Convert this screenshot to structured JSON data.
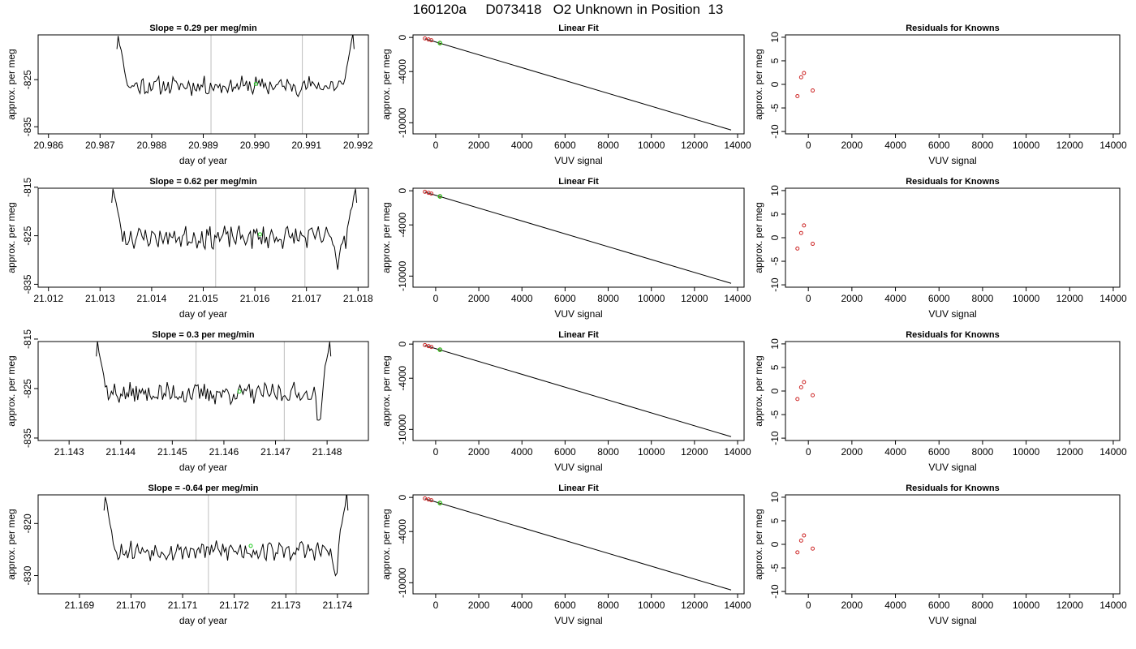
{
  "title": "160120a     D073418   O2 Unknown in Position  13",
  "chart_data": [
    {
      "type": "line",
      "panel": "trace",
      "title": "Slope =  0.29  per meg/min",
      "xlabel": "day of year",
      "ylabel": "approx. per meg",
      "xlim": [
        20.9858,
        20.9922
      ],
      "ylim": [
        -836.5,
        -815.5
      ],
      "xticks": [
        "20.986",
        "20.987",
        "20.988",
        "20.989",
        "20.990",
        "20.991",
        "20.992"
      ],
      "yticks": [
        "-825",
        "-835"
      ],
      "vlines": [
        20.98915,
        20.99092
      ],
      "marker": {
        "x": 20.99002,
        "y": -825.9
      },
      "trace": {
        "start": 20.98735,
        "end": 20.9919,
        "base": -826.3,
        "amp": 1.7,
        "seed": 11,
        "edge_left_y": -815.5,
        "edge_right_y": -815.5
      }
    },
    {
      "type": "scatter",
      "panel": "fit",
      "title": "Linear Fit",
      "xlabel": "VUV signal",
      "ylabel": "approx. per meg",
      "xlim": [
        -1050,
        14300
      ],
      "ylim": [
        -11300,
        300
      ],
      "xticks": [
        "0",
        "2000",
        "4000",
        "6000",
        "8000",
        "10000",
        "12000",
        "14000"
      ],
      "yticks": [
        "0",
        "-4000",
        "-10000"
      ],
      "line": {
        "x": [
          -500,
          13700
        ],
        "y": [
          -150,
          -10850
        ]
      },
      "knowns": {
        "x": [
          -500,
          -330,
          -200,
          200
        ],
        "y": [
          -120,
          -240,
          -330,
          -630
        ]
      },
      "unknown": {
        "x": 200,
        "y": -670
      }
    },
    {
      "type": "scatter",
      "panel": "residuals",
      "title": "Residuals for Knowns",
      "xlabel": "VUV signal",
      "ylabel": "approx. per meg",
      "xlim": [
        -1050,
        14300
      ],
      "ylim": [
        -10.5,
        10.5
      ],
      "xticks": [
        "0",
        "2000",
        "4000",
        "6000",
        "8000",
        "10000",
        "12000",
        "14000"
      ],
      "yticks": [
        "10",
        "5",
        "0",
        "-5",
        "-10"
      ],
      "x": [
        -500,
        -330,
        -200,
        200
      ],
      "y": [
        -2.5,
        1.5,
        2.4,
        -1.3
      ]
    },
    {
      "type": "line",
      "panel": "trace",
      "title": "Slope =  0.62  per meg/min",
      "xlabel": "day of year",
      "ylabel": "approx. per meg",
      "xlim": [
        21.0118,
        21.0182
      ],
      "ylim": [
        -835.6,
        -815.2
      ],
      "xticks": [
        "21.012",
        "21.013",
        "21.014",
        "21.015",
        "21.016",
        "21.017",
        "21.018"
      ],
      "yticks": [
        "-815",
        "-825",
        "-835"
      ],
      "vlines": [
        21.01524,
        21.01697
      ],
      "marker": {
        "x": 21.0161,
        "y": -824.7
      },
      "trace": {
        "start": 21.01325,
        "end": 21.01795,
        "base": -825.3,
        "amp": 1.9,
        "seed": 23,
        "edge_left_y": -815.2,
        "edge_right_y": -815.2,
        "dip": {
          "x": 21.0176,
          "y": -831
        }
      }
    },
    {
      "type": "scatter",
      "panel": "fit",
      "title": "Linear Fit",
      "xlabel": "VUV signal",
      "ylabel": "approx. per meg",
      "xlim": [
        -1050,
        14300
      ],
      "ylim": [
        -11300,
        300
      ],
      "xticks": [
        "0",
        "2000",
        "4000",
        "6000",
        "8000",
        "10000",
        "12000",
        "14000"
      ],
      "yticks": [
        "0",
        "-4000",
        "-10000"
      ],
      "line": {
        "x": [
          -500,
          13700
        ],
        "y": [
          -150,
          -10850
        ]
      },
      "knowns": {
        "x": [
          -500,
          -330,
          -200,
          200
        ],
        "y": [
          -120,
          -240,
          -330,
          -630
        ]
      },
      "unknown": {
        "x": 200,
        "y": -670
      }
    },
    {
      "type": "scatter",
      "panel": "residuals",
      "title": "Residuals for Knowns",
      "xlabel": "VUV signal",
      "ylabel": "approx. per meg",
      "xlim": [
        -1050,
        14300
      ],
      "ylim": [
        -10.5,
        10.5
      ],
      "xticks": [
        "0",
        "2000",
        "4000",
        "6000",
        "8000",
        "10000",
        "12000",
        "14000"
      ],
      "yticks": [
        "10",
        "5",
        "0",
        "-5",
        "-10"
      ],
      "x": [
        -500,
        -330,
        -200,
        200
      ],
      "y": [
        -2.3,
        1.0,
        2.6,
        -1.3
      ]
    },
    {
      "type": "line",
      "panel": "trace",
      "title": "Slope =  0.3  per meg/min",
      "xlabel": "day of year",
      "ylabel": "approx. per meg",
      "xlim": [
        21.1424,
        21.1488
      ],
      "ylim": [
        -835.5,
        -815.5
      ],
      "xticks": [
        "21.143",
        "21.144",
        "21.145",
        "21.146",
        "21.147",
        "21.148"
      ],
      "yticks": [
        "-815",
        "-825",
        "-835"
      ],
      "vlines": [
        21.14546,
        21.14717
      ],
      "marker": {
        "x": 21.1463,
        "y": -825.6
      },
      "trace": {
        "start": 21.14355,
        "end": 21.14805,
        "base": -826.0,
        "amp": 1.8,
        "seed": 37,
        "edge_left_y": -815.5,
        "edge_right_y": -815.5,
        "dip": {
          "x": 21.14785,
          "y": -833.5
        }
      }
    },
    {
      "type": "scatter",
      "panel": "fit",
      "title": "Linear Fit",
      "xlabel": "VUV signal",
      "ylabel": "approx. per meg",
      "xlim": [
        -1050,
        14300
      ],
      "ylim": [
        -11300,
        300
      ],
      "xticks": [
        "0",
        "2000",
        "4000",
        "6000",
        "8000",
        "10000",
        "12000",
        "14000"
      ],
      "yticks": [
        "0",
        "-4000",
        "-10000"
      ],
      "line": {
        "x": [
          -500,
          13700
        ],
        "y": [
          -150,
          -10850
        ]
      },
      "knowns": {
        "x": [
          -500,
          -330,
          -200,
          200
        ],
        "y": [
          -120,
          -240,
          -330,
          -630
        ]
      },
      "unknown": {
        "x": 200,
        "y": -670
      }
    },
    {
      "type": "scatter",
      "panel": "residuals",
      "title": "Residuals for Knowns",
      "xlabel": "VUV signal",
      "ylabel": "approx. per meg",
      "xlim": [
        -1050,
        14300
      ],
      "ylim": [
        -10.5,
        10.5
      ],
      "xticks": [
        "0",
        "2000",
        "4000",
        "6000",
        "8000",
        "10000",
        "12000",
        "14000"
      ],
      "yticks": [
        "10",
        "5",
        "0",
        "-5",
        "-10"
      ],
      "x": [
        -500,
        -330,
        -200,
        200
      ],
      "y": [
        -1.7,
        0.8,
        1.9,
        -0.9
      ]
    },
    {
      "type": "line",
      "panel": "trace",
      "title": "Slope =  -0.64  per meg/min",
      "xlabel": "day of year",
      "ylabel": "approx. per meg",
      "xlim": [
        21.1682,
        21.1746
      ],
      "ylim": [
        -833.5,
        -814.5
      ],
      "xticks": [
        "21.169",
        "21.170",
        "21.171",
        "21.172",
        "21.173",
        "21.174"
      ],
      "yticks": [
        "-820",
        "-830"
      ],
      "vlines": [
        21.1715,
        21.1732
      ],
      "marker": {
        "x": 21.17232,
        "y": -824.3
      },
      "trace": {
        "start": 21.1695,
        "end": 21.17418,
        "base": -825.2,
        "amp": 1.6,
        "seed": 53,
        "edge_left_y": -814.5,
        "edge_right_y": -814.5,
        "dip": {
          "x": 21.17395,
          "y": -830.5
        }
      }
    },
    {
      "type": "scatter",
      "panel": "fit",
      "title": "Linear Fit",
      "xlabel": "VUV signal",
      "ylabel": "approx. per meg",
      "xlim": [
        -1050,
        14300
      ],
      "ylim": [
        -11300,
        300
      ],
      "xticks": [
        "0",
        "2000",
        "4000",
        "6000",
        "8000",
        "10000",
        "12000",
        "14000"
      ],
      "yticks": [
        "0",
        "-4000",
        "-10000"
      ],
      "line": {
        "x": [
          -500,
          13700
        ],
        "y": [
          -150,
          -10850
        ]
      },
      "knowns": {
        "x": [
          -500,
          -330,
          -200,
          200
        ],
        "y": [
          -120,
          -240,
          -330,
          -630
        ]
      },
      "unknown": {
        "x": 200,
        "y": -670
      }
    },
    {
      "type": "scatter",
      "panel": "residuals",
      "title": "Residuals for Knowns",
      "xlabel": "VUV signal",
      "ylabel": "approx. per meg",
      "xlim": [
        -1050,
        14300
      ],
      "ylim": [
        -10.5,
        10.5
      ],
      "xticks": [
        "0",
        "2000",
        "4000",
        "6000",
        "8000",
        "10000",
        "12000",
        "14000"
      ],
      "yticks": [
        "10",
        "5",
        "0",
        "-5",
        "-10"
      ],
      "x": [
        -500,
        -330,
        -200,
        200
      ],
      "y": [
        -1.7,
        0.8,
        1.9,
        -0.9
      ]
    }
  ],
  "colors": {
    "axis": "#000000",
    "trace": "#000000",
    "vline": "#bebebe",
    "known": "#cd2626",
    "unknown": "#22cc22",
    "fitline": "#000000"
  }
}
